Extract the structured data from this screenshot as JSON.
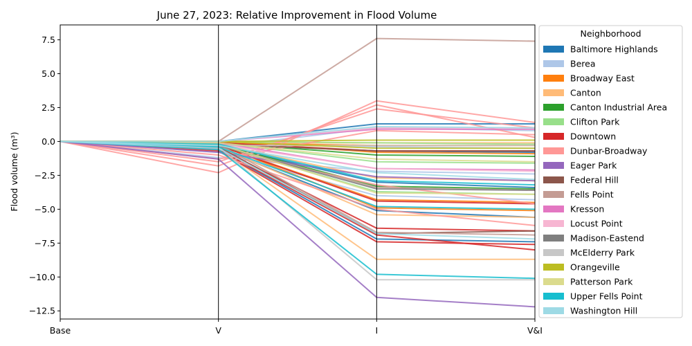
{
  "chart_data": {
    "type": "line",
    "title": "June 27, 2023: Relative Improvement in Flood Volume",
    "ylabel": "Flood volume (m³)",
    "xlabel": "",
    "categories": [
      "Base",
      "V",
      "I",
      "V&I"
    ],
    "ylim": [
      -13.1,
      8.6
    ],
    "yticks": [
      -12.5,
      -10.0,
      -7.5,
      -5.0,
      -2.5,
      0.0,
      2.5,
      5.0,
      7.5
    ],
    "ytick_labels": [
      "−12.5",
      "−10.0",
      "−7.5",
      "−5.0",
      "−2.5",
      "0.0",
      "2.5",
      "5.0",
      "7.5"
    ],
    "grid": false,
    "vertical_axis_lines": true,
    "legend": {
      "title": "Neighborhood",
      "placement": "outside-right",
      "entries": [
        {
          "name": "Baltimore Highlands",
          "color": "#1f77b4"
        },
        {
          "name": "Berea",
          "color": "#aec7e8"
        },
        {
          "name": "Broadway East",
          "color": "#ff7f0e"
        },
        {
          "name": "Canton",
          "color": "#ffbb78"
        },
        {
          "name": "Canton Industrial Area",
          "color": "#2ca02c"
        },
        {
          "name": "Clifton Park",
          "color": "#98df8a"
        },
        {
          "name": "Downtown",
          "color": "#d62728"
        },
        {
          "name": "Dunbar-Broadway",
          "color": "#ff9896"
        },
        {
          "name": "Eager Park",
          "color": "#9467bd"
        },
        {
          "name": "Federal Hill",
          "color": "#8c564b"
        },
        {
          "name": "Fells Point",
          "color": "#c49c94"
        },
        {
          "name": "Kresson",
          "color": "#e377c2"
        },
        {
          "name": "Locust Point",
          "color": "#f7b6d2"
        },
        {
          "name": "Madison-Eastend",
          "color": "#7f7f7f"
        },
        {
          "name": "McElderry Park",
          "color": "#c7c7c7"
        },
        {
          "name": "Orangeville",
          "color": "#bcbd22"
        },
        {
          "name": "Patterson Park",
          "color": "#dbdb8d"
        },
        {
          "name": "Upper Fells Point",
          "color": "#17becf"
        },
        {
          "name": "Washington Hill",
          "color": "#9edae5"
        }
      ]
    },
    "series": [
      {
        "color": "#1f77b4",
        "values": [
          0,
          0,
          1.3,
          1.3
        ]
      },
      {
        "color": "#1f77b4",
        "values": [
          0,
          -0.3,
          -3.0,
          -3.4
        ]
      },
      {
        "color": "#1f77b4",
        "values": [
          0,
          -0.5,
          -5.1,
          -5.6
        ]
      },
      {
        "color": "#1f77b4",
        "values": [
          0,
          -0.6,
          -7.2,
          -7.4
        ]
      },
      {
        "color": "#1f77b4",
        "values": [
          0,
          -0.2,
          -0.7,
          -0.8
        ]
      },
      {
        "color": "#aec7e8",
        "values": [
          0,
          -1.2,
          -2.2,
          -2.4
        ]
      },
      {
        "color": "#aec7e8",
        "values": [
          0,
          -0.4,
          1.0,
          0.8
        ]
      },
      {
        "color": "#aec7e8",
        "values": [
          0,
          -0.8,
          -4.0,
          -4.3
        ]
      },
      {
        "color": "#aec7e8",
        "values": [
          0,
          -0.1,
          -0.4,
          -0.5
        ]
      },
      {
        "color": "#ff7f0e",
        "values": [
          0,
          0,
          -0.8,
          -0.9
        ]
      },
      {
        "color": "#ff7f0e",
        "values": [
          0,
          -0.2,
          -4.9,
          -5.1
        ]
      },
      {
        "color": "#ff7f0e",
        "values": [
          0,
          -0.1,
          -0.3,
          -0.3
        ]
      },
      {
        "color": "#ff7f0e",
        "values": [
          0,
          -0.3,
          -4.3,
          -4.5
        ]
      },
      {
        "color": "#ffbb78",
        "values": [
          0,
          -0.5,
          -8.7,
          -8.7
        ]
      },
      {
        "color": "#ffbb78",
        "values": [
          0,
          -0.4,
          -5.4,
          -5.6
        ]
      },
      {
        "color": "#ffbb78",
        "values": [
          0,
          -0.2,
          -2.7,
          -2.9
        ]
      },
      {
        "color": "#ffbb78",
        "values": [
          0,
          -0.1,
          -0.1,
          -0.1
        ]
      },
      {
        "color": "#2ca02c",
        "values": [
          0,
          -0.1,
          -1.0,
          -1.1
        ]
      },
      {
        "color": "#2ca02c",
        "values": [
          0,
          -0.2,
          -3.3,
          -3.5
        ]
      },
      {
        "color": "#98df8a",
        "values": [
          0,
          -0.1,
          -1.5,
          -1.6
        ]
      },
      {
        "color": "#98df8a",
        "values": [
          0,
          0,
          -0.1,
          -0.2
        ]
      },
      {
        "color": "#98df8a",
        "values": [
          0,
          -0.3,
          -3.7,
          -3.9
        ]
      },
      {
        "color": "#d62728",
        "values": [
          0,
          -0.5,
          -6.4,
          -6.6
        ]
      },
      {
        "color": "#d62728",
        "values": [
          0,
          -0.7,
          -7.4,
          -7.6
        ]
      },
      {
        "color": "#d62728",
        "values": [
          0,
          -0.6,
          -6.9,
          -8.0
        ]
      },
      {
        "color": "#d62728",
        "values": [
          0,
          -0.3,
          -4.4,
          -4.6
        ]
      },
      {
        "color": "#d62728",
        "values": [
          0,
          -0.1,
          -0.7,
          -0.7
        ]
      },
      {
        "color": "#ff9896",
        "values": [
          0,
          -2.3,
          3.0,
          1.4
        ]
      },
      {
        "color": "#ff9896",
        "values": [
          0,
          -1.8,
          2.7,
          0.3
        ]
      },
      {
        "color": "#ff9896",
        "values": [
          0,
          -1.5,
          2.4,
          1.0
        ]
      },
      {
        "color": "#ff9896",
        "values": [
          0,
          -1.3,
          0.8,
          0.5
        ]
      },
      {
        "color": "#ff9896",
        "values": [
          0,
          -1.0,
          -5.0,
          -6.2
        ]
      },
      {
        "color": "#ff9896",
        "values": [
          0,
          -0.6,
          -3.2,
          -4.6
        ]
      },
      {
        "color": "#9467bd",
        "values": [
          0,
          -1.3,
          -11.5,
          -12.2
        ]
      },
      {
        "color": "#9467bd",
        "values": [
          0,
          -0.8,
          -2.6,
          -2.9
        ]
      },
      {
        "color": "#8c564b",
        "values": [
          0,
          -0.4,
          -6.8,
          -6.6
        ]
      },
      {
        "color": "#8c564b",
        "values": [
          0,
          -0.2,
          -0.7,
          -0.7
        ]
      },
      {
        "color": "#c49c94",
        "values": [
          0,
          0,
          7.6,
          7.4
        ]
      },
      {
        "color": "#c49c94",
        "values": [
          0,
          -0.3,
          -3.4,
          -3.6
        ]
      },
      {
        "color": "#c49c94",
        "values": [
          0,
          -0.2,
          -6.7,
          -6.9
        ]
      },
      {
        "color": "#e377c2",
        "values": [
          0,
          0,
          0.9,
          0.9
        ]
      },
      {
        "color": "#e377c2",
        "values": [
          0,
          -0.1,
          -2.0,
          -2.1
        ]
      },
      {
        "color": "#f7b6d2",
        "values": [
          0,
          -0.2,
          -2.0,
          -2.2
        ]
      },
      {
        "color": "#f7b6d2",
        "values": [
          0,
          0,
          1.0,
          1.0
        ]
      },
      {
        "color": "#7f7f7f",
        "values": [
          0,
          -0.3,
          -3.5,
          -3.6
        ]
      },
      {
        "color": "#c7c7c7",
        "values": [
          0,
          -0.4,
          -10.2,
          -10.2
        ]
      },
      {
        "color": "#c7c7c7",
        "values": [
          0,
          -0.3,
          -0.3,
          -0.3
        ]
      },
      {
        "color": "#bcbd22",
        "values": [
          0,
          0,
          -0.5,
          -0.5
        ]
      },
      {
        "color": "#bcbd22",
        "values": [
          0,
          0,
          0.1,
          0.1
        ]
      },
      {
        "color": "#dbdb8d",
        "values": [
          0,
          -0.1,
          -1.3,
          -1.5
        ]
      },
      {
        "color": "#dbdb8d",
        "values": [
          0,
          -0.2,
          -3.8,
          -3.9
        ]
      },
      {
        "color": "#17becf",
        "values": [
          0,
          -0.6,
          -9.8,
          -10.1
        ]
      },
      {
        "color": "#17becf",
        "values": [
          0,
          -0.2,
          -2.9,
          -3.2
        ]
      },
      {
        "color": "#17becf",
        "values": [
          0,
          -0.4,
          -4.8,
          -5.0
        ]
      },
      {
        "color": "#9edae5",
        "values": [
          0,
          -0.5,
          -6.8,
          -7.2
        ]
      },
      {
        "color": "#9edae5",
        "values": [
          0,
          -0.3,
          -2.3,
          -2.8
        ]
      },
      {
        "color": "#9edae5",
        "values": [
          0,
          0,
          1.1,
          1.0
        ]
      }
    ]
  }
}
